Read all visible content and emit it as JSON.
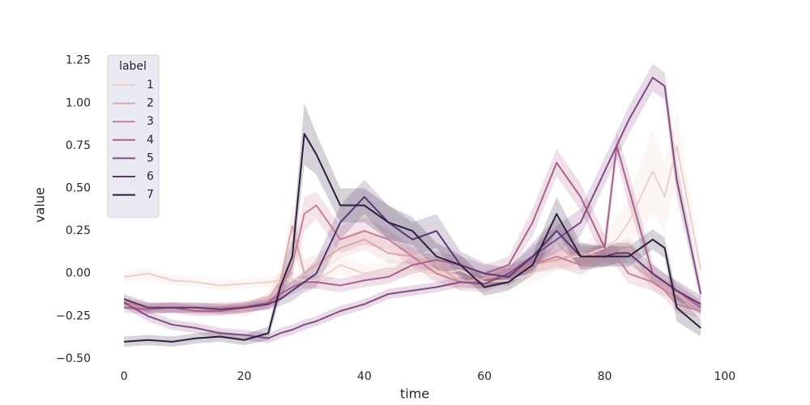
{
  "chart_data": {
    "type": "line",
    "xlabel": "time",
    "ylabel": "value",
    "legend_title": "label",
    "legend_position": "upper left",
    "xlim": [
      -3.8,
      100.7
    ],
    "ylim": [
      -0.51,
      1.32
    ],
    "xticks": [
      0,
      20,
      40,
      60,
      80,
      100
    ],
    "yticks": [
      {
        "value": -0.5,
        "label": "−0.50"
      },
      {
        "value": -0.25,
        "label": "−0.25"
      },
      {
        "value": 0,
        "label": "0.00"
      },
      {
        "value": 0.25,
        "label": "0.25"
      },
      {
        "value": 0.5,
        "label": "0.50"
      },
      {
        "value": 0.75,
        "label": "0.75"
      },
      {
        "value": 1,
        "label": "1.00"
      },
      {
        "value": 1.25,
        "label": "1.25"
      }
    ],
    "x": [
      0,
      4,
      8,
      12,
      16,
      20,
      24,
      26,
      28,
      30,
      32,
      36,
      40,
      44,
      48,
      52,
      56,
      60,
      64,
      68,
      72,
      76,
      80,
      82,
      84,
      88,
      90,
      92,
      96
    ],
    "series": [
      {
        "name": "1",
        "color": "#efd0c8",
        "values": [
          -0.02,
          0.0,
          -0.04,
          -0.05,
          -0.07,
          -0.06,
          -0.05,
          -0.04,
          -0.03,
          -0.04,
          -0.04,
          0.05,
          0.0,
          0.03,
          0.02,
          0.0,
          0.02,
          -0.05,
          -0.04,
          0.0,
          0.1,
          0.1,
          0.15,
          0.2,
          0.3,
          0.6,
          0.45,
          0.75,
          0.02
        ],
        "ci": [
          0.03,
          0.03,
          0.03,
          0.03,
          0.03,
          0.03,
          0.03,
          0.04,
          0.04,
          0.04,
          0.05,
          0.05,
          0.05,
          0.05,
          0.05,
          0.05,
          0.05,
          0.05,
          0.05,
          0.06,
          0.08,
          0.08,
          0.1,
          0.12,
          0.15,
          0.25,
          0.2,
          0.2,
          0.08
        ]
      },
      {
        "name": "2",
        "color": "#e0a6a6",
        "values": [
          -0.18,
          -0.2,
          -0.2,
          -0.21,
          -0.2,
          -0.22,
          -0.15,
          -0.05,
          0.28,
          0.0,
          0.05,
          0.15,
          0.2,
          0.12,
          0.1,
          0.05,
          -0.05,
          -0.03,
          0.0,
          0.05,
          0.08,
          0.12,
          0.1,
          0.12,
          0.15,
          -0.05,
          -0.08,
          -0.12,
          -0.2
        ],
        "ci": [
          0.03,
          0.03,
          0.03,
          0.03,
          0.03,
          0.03,
          0.04,
          0.06,
          0.1,
          0.08,
          0.06,
          0.06,
          0.06,
          0.06,
          0.05,
          0.05,
          0.05,
          0.05,
          0.05,
          0.05,
          0.06,
          0.06,
          0.06,
          0.06,
          0.06,
          0.05,
          0.05,
          0.05,
          0.04
        ]
      },
      {
        "name": "3",
        "color": "#c87f98",
        "values": [
          -0.17,
          -0.2,
          -0.2,
          -0.2,
          -0.2,
          -0.19,
          -0.17,
          -0.1,
          0.05,
          0.35,
          0.4,
          0.2,
          0.25,
          0.2,
          0.1,
          0.0,
          -0.05,
          -0.06,
          0.0,
          0.05,
          0.1,
          0.05,
          0.13,
          0.1,
          0.0,
          -0.05,
          -0.1,
          -0.18,
          -0.22
        ],
        "ci": [
          0.03,
          0.03,
          0.03,
          0.03,
          0.03,
          0.03,
          0.04,
          0.06,
          0.08,
          0.1,
          0.08,
          0.08,
          0.08,
          0.06,
          0.06,
          0.05,
          0.05,
          0.05,
          0.05,
          0.05,
          0.06,
          0.06,
          0.06,
          0.06,
          0.06,
          0.05,
          0.05,
          0.05,
          0.04
        ]
      },
      {
        "name": "4",
        "color": "#a9608c",
        "values": [
          -0.2,
          -0.21,
          -0.2,
          -0.22,
          -0.22,
          -0.2,
          -0.17,
          -0.12,
          -0.08,
          -0.05,
          -0.05,
          -0.07,
          -0.04,
          -0.02,
          0.05,
          0.08,
          0.05,
          0.0,
          0.05,
          0.3,
          0.65,
          0.45,
          0.15,
          0.75,
          0.5,
          0.0,
          -0.05,
          -0.1,
          -0.2
        ],
        "ci": [
          0.03,
          0.03,
          0.03,
          0.03,
          0.03,
          0.03,
          0.04,
          0.04,
          0.04,
          0.04,
          0.04,
          0.04,
          0.04,
          0.04,
          0.05,
          0.05,
          0.05,
          0.05,
          0.05,
          0.08,
          0.08,
          0.08,
          0.08,
          0.08,
          0.1,
          0.06,
          0.05,
          0.05,
          0.04
        ]
      },
      {
        "name": "5",
        "color": "#844a82",
        "values": [
          -0.17,
          -0.25,
          -0.3,
          -0.32,
          -0.35,
          -0.36,
          -0.38,
          -0.35,
          -0.33,
          -0.3,
          -0.28,
          -0.22,
          -0.18,
          -0.12,
          -0.1,
          -0.08,
          -0.05,
          -0.06,
          0.0,
          0.1,
          0.2,
          0.3,
          0.6,
          0.75,
          0.9,
          1.15,
          1.1,
          0.55,
          -0.12
        ],
        "ci": [
          0.03,
          0.03,
          0.03,
          0.03,
          0.03,
          0.03,
          0.03,
          0.03,
          0.03,
          0.03,
          0.03,
          0.03,
          0.03,
          0.03,
          0.03,
          0.03,
          0.03,
          0.03,
          0.04,
          0.06,
          0.08,
          0.08,
          0.08,
          0.08,
          0.08,
          0.08,
          0.08,
          0.1,
          0.05
        ]
      },
      {
        "name": "6",
        "color": "#5c3670",
        "values": [
          -0.15,
          -0.2,
          -0.2,
          -0.2,
          -0.21,
          -0.2,
          -0.18,
          -0.15,
          -0.1,
          -0.05,
          0.0,
          0.3,
          0.45,
          0.3,
          0.2,
          0.25,
          0.05,
          0.0,
          -0.02,
          0.1,
          0.25,
          0.1,
          0.1,
          0.12,
          0.12,
          0.0,
          -0.05,
          -0.1,
          -0.18
        ],
        "ci": [
          0.03,
          0.03,
          0.03,
          0.03,
          0.03,
          0.03,
          0.03,
          0.04,
          0.06,
          0.06,
          0.08,
          0.1,
          0.1,
          0.1,
          0.1,
          0.1,
          0.08,
          0.06,
          0.05,
          0.08,
          0.08,
          0.06,
          0.06,
          0.06,
          0.06,
          0.05,
          0.05,
          0.06,
          0.05
        ]
      },
      {
        "name": "7",
        "color": "#2d1e3e",
        "values": [
          -0.4,
          -0.39,
          -0.4,
          -0.38,
          -0.37,
          -0.39,
          -0.35,
          -0.08,
          0.1,
          0.82,
          0.7,
          0.4,
          0.4,
          0.3,
          0.25,
          0.1,
          0.05,
          -0.08,
          -0.05,
          0.05,
          0.35,
          0.1,
          0.1,
          0.1,
          0.1,
          0.2,
          0.15,
          -0.2,
          -0.32
        ],
        "ci": [
          0.03,
          0.03,
          0.03,
          0.03,
          0.03,
          0.03,
          0.04,
          0.06,
          0.1,
          0.18,
          0.12,
          0.1,
          0.1,
          0.1,
          0.08,
          0.08,
          0.06,
          0.05,
          0.05,
          0.06,
          0.1,
          0.08,
          0.06,
          0.06,
          0.06,
          0.06,
          0.06,
          0.08,
          0.05
        ]
      }
    ]
  }
}
